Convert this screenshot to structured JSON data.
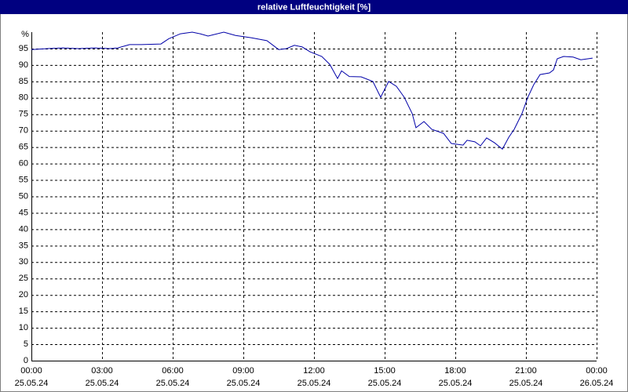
{
  "chart_data": {
    "type": "line",
    "title": "relative Luftfeuchtigkeit [%]",
    "y_label": "%",
    "x": [
      0,
      0.67,
      1.33,
      2,
      2.67,
      3.33,
      3.67,
      4.17,
      4.67,
      5.5,
      5.83,
      6.33,
      6.83,
      7.17,
      7.5,
      8.17,
      8.67,
      9.33,
      10,
      10.5,
      10.83,
      11.17,
      11.5,
      11.83,
      12.33,
      12.67,
      13,
      13.17,
      13.5,
      14,
      14.5,
      14.83,
      15.17,
      15.5,
      15.83,
      16.17,
      16.33,
      16.67,
      17,
      17.5,
      17.83,
      18.33,
      18.5,
      18.83,
      19.07,
      19.33,
      19.67,
      20,
      20.27,
      20.5,
      20.83,
      21.07,
      21.33,
      21.6,
      22,
      22.17,
      22.33,
      22.6,
      23,
      23.33,
      23.83
    ],
    "series": [
      {
        "name": "relative Luftfeuchtigkeit",
        "color": "#0000a8",
        "values": [
          94.7,
          95,
          95.2,
          95,
          95.2,
          95,
          95.2,
          96.2,
          96.2,
          96.4,
          98,
          99.5,
          100,
          99.5,
          98.8,
          100,
          99,
          98.3,
          97.4,
          94.7,
          95,
          96,
          95.5,
          94,
          92.6,
          90.2,
          85.9,
          88.2,
          86.5,
          86.4,
          85,
          80.2,
          85,
          83.5,
          80.2,
          75.2,
          70.9,
          72.8,
          70.4,
          69.2,
          66.1,
          65.6,
          67.1,
          66.6,
          65.4,
          67.8,
          66.3,
          64.4,
          68,
          70.4,
          75.2,
          80,
          84,
          87.1,
          87.6,
          88.5,
          91.9,
          92.6,
          92.4,
          91.6,
          92.1
        ]
      }
    ],
    "xlim": [
      0,
      24
    ],
    "xticks": [
      {
        "value": 0,
        "label": [
          "00:00",
          "25.05.24"
        ]
      },
      {
        "value": 3,
        "label": [
          "03:00",
          "25.05.24"
        ]
      },
      {
        "value": 6,
        "label": [
          "06:00",
          "25.05.24"
        ]
      },
      {
        "value": 9,
        "label": [
          "09:00",
          "25.05.24"
        ]
      },
      {
        "value": 12,
        "label": [
          "12:00",
          "25.05.24"
        ]
      },
      {
        "value": 15,
        "label": [
          "15:00",
          "25.05.24"
        ]
      },
      {
        "value": 18,
        "label": [
          "18:00",
          "25.05.24"
        ]
      },
      {
        "value": 21,
        "label": [
          "21:00",
          "25.05.24"
        ]
      },
      {
        "value": 24,
        "label": [
          "00:00",
          "26.05.24"
        ]
      }
    ],
    "ylim": [
      0,
      100
    ],
    "yticks": [
      0,
      5,
      10,
      15,
      20,
      25,
      30,
      35,
      40,
      45,
      50,
      55,
      60,
      65,
      70,
      75,
      80,
      85,
      90,
      95
    ],
    "grid": true
  }
}
